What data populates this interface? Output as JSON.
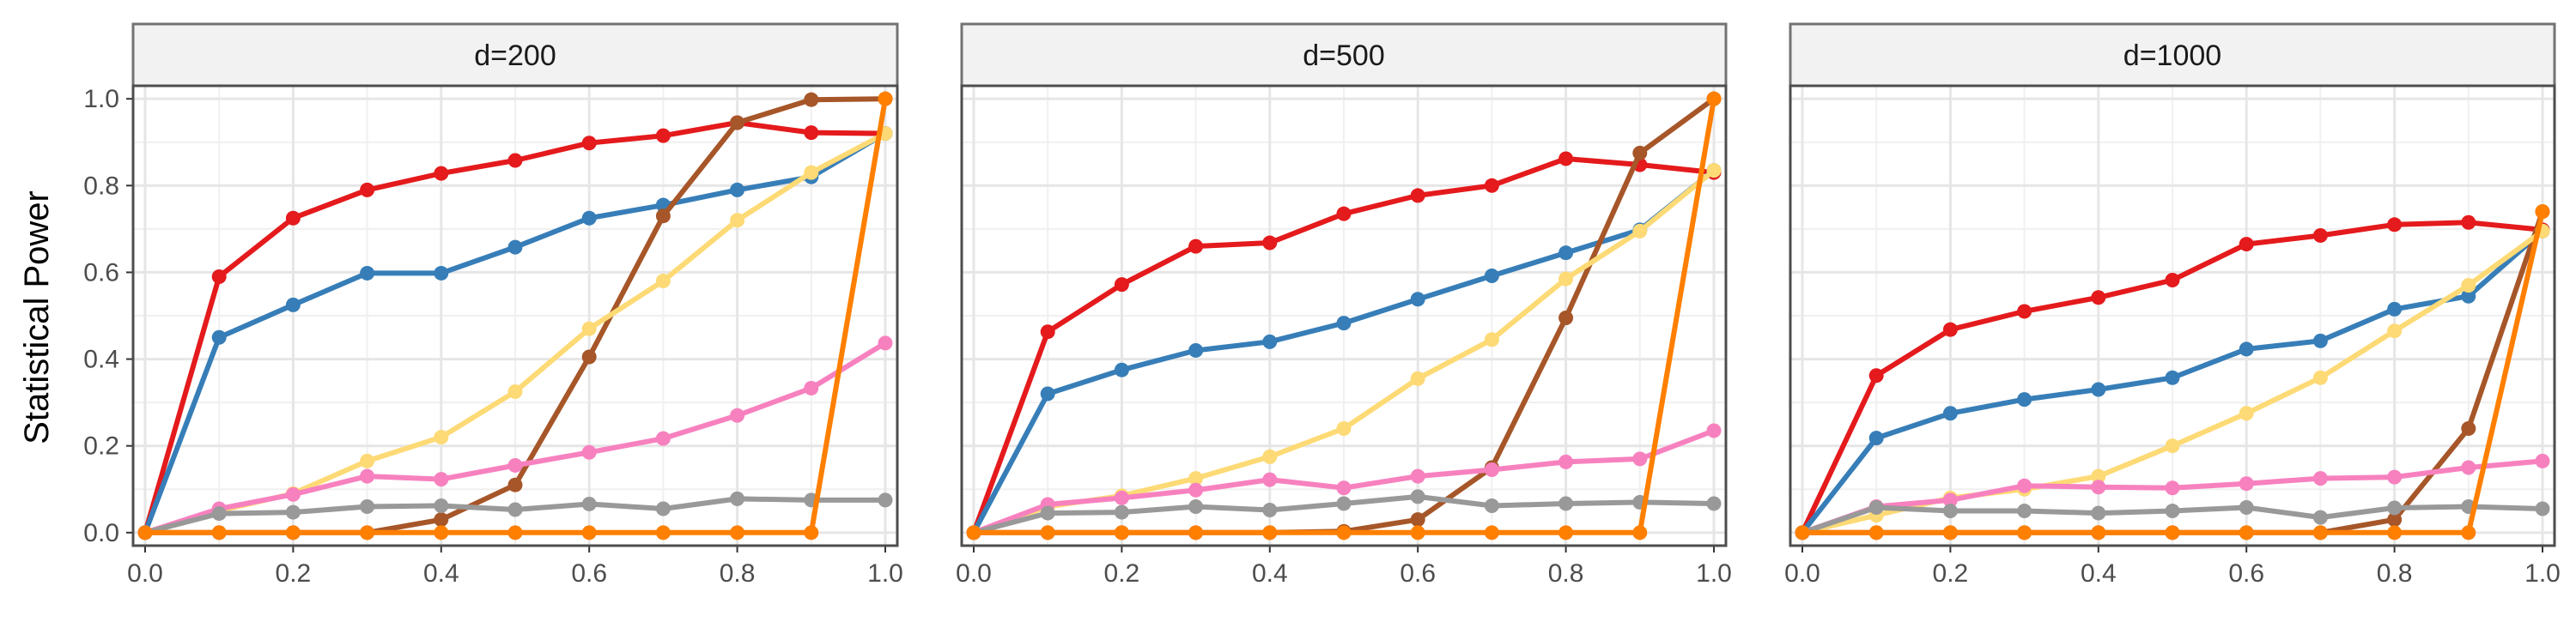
{
  "chart_data": {
    "type": "line",
    "ylabel": "Statistical Power",
    "xlabel": "",
    "xlim": [
      0,
      1
    ],
    "ylim": [
      -0.03,
      1.03
    ],
    "x_ticks": [
      "0.0",
      "0.2",
      "0.4",
      "0.6",
      "0.8",
      "1.0"
    ],
    "y_ticks": [
      "0.0",
      "0.2",
      "0.4",
      "0.6",
      "0.8",
      "1.0"
    ],
    "grid": true,
    "x": [
      0.0,
      0.1,
      0.2,
      0.3,
      0.4,
      0.5,
      0.6,
      0.7,
      0.8,
      0.9,
      1.0
    ],
    "panels": [
      {
        "label": "d=200",
        "series": [
          {
            "color": "#E41A1C",
            "values": [
              0.0,
              0.59,
              0.725,
              0.79,
              0.828,
              0.858,
              0.898,
              0.915,
              0.945,
              0.922,
              0.92
            ]
          },
          {
            "color": "#377EB8",
            "values": [
              0.0,
              0.45,
              0.525,
              0.598,
              0.598,
              0.658,
              0.725,
              0.755,
              0.79,
              0.82,
              0.92
            ]
          },
          {
            "color": "#A65628",
            "values": [
              0.0,
              0.0,
              0.0,
              0.0,
              0.03,
              0.11,
              0.405,
              0.73,
              0.945,
              0.998,
              1.0
            ]
          },
          {
            "color": "#FDDA75",
            "values": [
              0.0,
              0.05,
              0.09,
              0.165,
              0.22,
              0.325,
              0.47,
              0.58,
              0.72,
              0.83,
              0.92
            ]
          },
          {
            "color": "#F781BF",
            "values": [
              0.0,
              0.055,
              0.088,
              0.13,
              0.123,
              0.155,
              0.185,
              0.217,
              0.27,
              0.333,
              0.437
            ]
          },
          {
            "color": "#999999",
            "values": [
              0.0,
              0.044,
              0.047,
              0.06,
              0.062,
              0.053,
              0.066,
              0.055,
              0.078,
              0.075,
              0.075
            ]
          },
          {
            "color": "#FF7F00",
            "values": [
              0.0,
              0.0,
              0.0,
              0.0,
              0.0,
              0.0,
              0.0,
              0.0,
              0.0,
              0.0,
              1.0
            ]
          }
        ]
      },
      {
        "label": "d=500",
        "series": [
          {
            "color": "#E41A1C",
            "values": [
              0.0,
              0.463,
              0.572,
              0.66,
              0.668,
              0.735,
              0.777,
              0.8,
              0.862,
              0.848,
              0.83
            ]
          },
          {
            "color": "#377EB8",
            "values": [
              0.0,
              0.32,
              0.375,
              0.42,
              0.44,
              0.483,
              0.538,
              0.592,
              0.645,
              0.698,
              0.835
            ]
          },
          {
            "color": "#A65628",
            "values": [
              0.0,
              0.0,
              0.0,
              0.0,
              0.0,
              0.003,
              0.03,
              0.15,
              0.495,
              0.875,
              1.0
            ]
          },
          {
            "color": "#FDDA75",
            "values": [
              0.0,
              0.06,
              0.085,
              0.125,
              0.175,
              0.24,
              0.355,
              0.445,
              0.585,
              0.695,
              0.835
            ]
          },
          {
            "color": "#F781BF",
            "values": [
              0.0,
              0.065,
              0.08,
              0.098,
              0.122,
              0.103,
              0.13,
              0.145,
              0.163,
              0.17,
              0.235
            ]
          },
          {
            "color": "#999999",
            "values": [
              0.0,
              0.045,
              0.047,
              0.06,
              0.052,
              0.067,
              0.083,
              0.062,
              0.067,
              0.07,
              0.067
            ]
          },
          {
            "color": "#FF7F00",
            "values": [
              0.0,
              0.0,
              0.0,
              0.0,
              0.0,
              0.0,
              0.0,
              0.0,
              0.0,
              0.0,
              1.0
            ]
          }
        ]
      },
      {
        "label": "d=1000",
        "series": [
          {
            "color": "#E41A1C",
            "values": [
              0.0,
              0.362,
              0.468,
              0.51,
              0.542,
              0.582,
              0.665,
              0.685,
              0.71,
              0.715,
              0.698
            ]
          },
          {
            "color": "#377EB8",
            "values": [
              0.0,
              0.218,
              0.275,
              0.307,
              0.33,
              0.357,
              0.423,
              0.442,
              0.515,
              0.545,
              0.695
            ]
          },
          {
            "color": "#A65628",
            "values": [
              0.0,
              0.0,
              0.0,
              0.0,
              0.0,
              0.0,
              0.0,
              0.0,
              0.03,
              0.24,
              0.74
            ]
          },
          {
            "color": "#FDDA75",
            "values": [
              0.0,
              0.04,
              0.08,
              0.1,
              0.13,
              0.2,
              0.275,
              0.357,
              0.465,
              0.57,
              0.695
            ]
          },
          {
            "color": "#F781BF",
            "values": [
              0.0,
              0.06,
              0.075,
              0.108,
              0.105,
              0.103,
              0.113,
              0.125,
              0.128,
              0.15,
              0.165
            ]
          },
          {
            "color": "#999999",
            "values": [
              0.0,
              0.058,
              0.05,
              0.05,
              0.045,
              0.05,
              0.058,
              0.035,
              0.057,
              0.06,
              0.055
            ]
          },
          {
            "color": "#FF7F00",
            "values": [
              0.0,
              0.0,
              0.0,
              0.0,
              0.0,
              0.0,
              0.0,
              0.0,
              0.0,
              0.0,
              0.74
            ]
          }
        ]
      }
    ]
  }
}
